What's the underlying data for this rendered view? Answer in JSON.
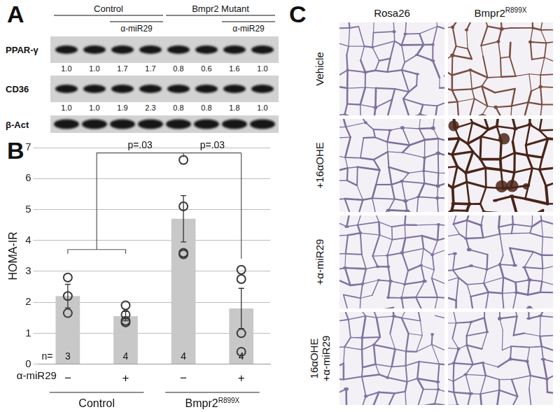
{
  "panel_a": {
    "letter": "A",
    "groups": [
      {
        "name": "Control",
        "treated_label": "α-miR29"
      },
      {
        "name": "Bmpr2 Mutant",
        "treated_label": "α-miR29"
      }
    ],
    "rows": [
      {
        "name": "PPAR-γ",
        "quant": [
          "1.0",
          "1.0",
          "1.7",
          "1.7",
          "0.8",
          "0.6",
          "1.6",
          "1.0"
        ]
      },
      {
        "name": "CD36",
        "quant": [
          "1.0",
          "1.0",
          "1.9",
          "2.3",
          "0.8",
          "0.8",
          "1.8",
          "1.0"
        ]
      },
      {
        "name": "β-Act"
      }
    ]
  },
  "chart_data": {
    "letter": "B",
    "type": "bar",
    "categories": [
      "−",
      "+",
      "−",
      "+"
    ],
    "values": [
      2.2,
      1.55,
      4.7,
      1.8
    ],
    "errors": [
      0.38,
      0.15,
      0.75,
      0.65
    ],
    "points": [
      [
        2.8,
        2.2,
        1.65
      ],
      [
        1.9,
        1.6,
        1.4,
        1.35
      ],
      [
        6.6,
        5.1,
        3.6,
        3.55
      ],
      [
        3.05,
        2.75,
        1.0,
        0.4
      ]
    ],
    "n_label": "n=",
    "n": [
      3,
      4,
      4,
      4
    ],
    "x_row_label": "α-miR29",
    "groups": [
      {
        "name": "Control"
      },
      {
        "name": "Bmpr2",
        "superscript": "R899X"
      }
    ],
    "annotations": [
      "p=.03",
      "p=.03"
    ],
    "y_label": "HOMA-IR",
    "color": "#c8c8c8",
    "ylim": [
      0,
      7
    ],
    "yticks": [
      0,
      1,
      2,
      3,
      4,
      5,
      6,
      7
    ],
    "grid": true
  },
  "panel_c": {
    "letter": "C",
    "columns": [
      {
        "text": "Rosa26"
      },
      {
        "text": "Bmpr2",
        "superscript": "R899X"
      }
    ],
    "rows": [
      {
        "lines": [
          "Vehicle"
        ],
        "colors": [
          "#7f72a0",
          "#7a4c40"
        ]
      },
      {
        "lines": [
          "+16αOHE"
        ],
        "colors": [
          "#7c6f9c",
          "#4a2418"
        ]
      },
      {
        "lines": [
          "+α-miR29"
        ],
        "colors": [
          "#8073a2",
          "#7d70a0"
        ]
      },
      {
        "lines": [
          "16αOHE",
          "+α-miR29"
        ],
        "colors": [
          "#8174a3",
          "#7e719f"
        ]
      }
    ]
  }
}
